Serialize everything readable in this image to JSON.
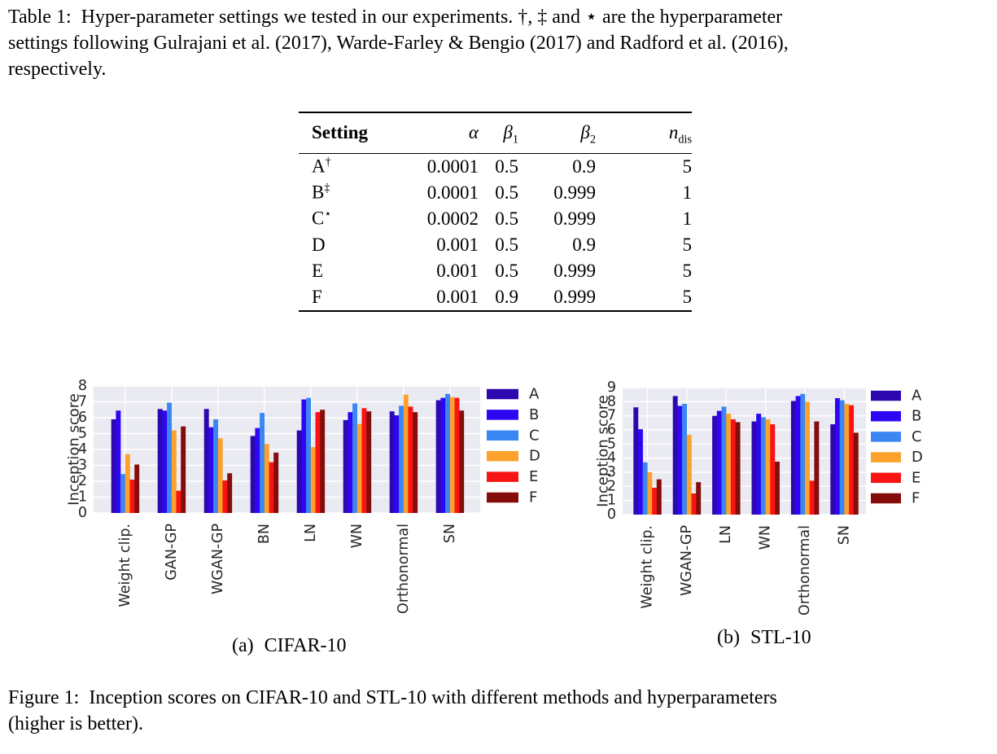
{
  "document": {
    "table_caption": {
      "lines": [
        "Table 1:  Hyper-parameter settings we tested in our experiments. †, ‡ and ⋆ are the hyperparameter",
        "settings following Gulrajani et al. (2017), Warde-Farley & Bengio (2017) and Radford et al. (2016),",
        "respectively."
      ]
    },
    "figure_caption": {
      "lines": [
        "Figure 1:  Inception scores on CIFAR-10 and STL-10 with different methods and hyperparameters",
        "(higher is better)."
      ]
    }
  },
  "table": {
    "columns": [
      {
        "text": "Setting",
        "bold": true
      },
      {
        "text": "α",
        "italic": true
      },
      {
        "text": "β",
        "sub": "1",
        "italic": true
      },
      {
        "text": "β",
        "sub": "2",
        "italic": true
      },
      {
        "text": "n",
        "sub": "dis",
        "italic": true
      }
    ],
    "rows": [
      {
        "setting": "A",
        "sup": "†",
        "values": [
          "0.0001",
          "0.5",
          "0.9",
          "5"
        ]
      },
      {
        "setting": "B",
        "sup": "‡",
        "values": [
          "0.0001",
          "0.5",
          "0.999",
          "1"
        ]
      },
      {
        "setting": "C",
        "sup": "⋆",
        "values": [
          "0.0002",
          "0.5",
          "0.999",
          "1"
        ]
      },
      {
        "setting": "D",
        "sup": "",
        "values": [
          "0.001",
          "0.5",
          "0.9",
          "5"
        ]
      },
      {
        "setting": "E",
        "sup": "",
        "values": [
          "0.001",
          "0.5",
          "0.999",
          "5"
        ]
      },
      {
        "setting": "F",
        "sup": "",
        "values": [
          "0.001",
          "0.9",
          "0.999",
          "5"
        ]
      }
    ]
  },
  "palette": {
    "A": "#2c08ae",
    "B": "#2e06f4",
    "C": "#3a86f2",
    "D": "#fba12c",
    "E": "#f81412",
    "F": "#840c0a"
  },
  "plot_style": {
    "background": "#eaeaf2",
    "grid_color": "#ffffff",
    "text_color": "#262626"
  },
  "chart_data": [
    {
      "type": "bar",
      "title": "(a) CIFAR-10",
      "caption_label": "(a)",
      "caption_text": "CIFAR-10",
      "ylabel": "Inception score",
      "ylim": [
        0,
        8
      ],
      "ytick_step": 1,
      "grid": true,
      "legend_position": "right",
      "categories": [
        "Weight clip.",
        "GAN-GP",
        "WGAN-GP",
        "BN",
        "LN",
        "WN",
        "Orthonormal",
        "SN"
      ],
      "series": [
        {
          "name": "A",
          "color": "#2c08ae",
          "values": [
            5.9,
            6.55,
            6.55,
            4.85,
            5.2,
            5.85,
            6.4,
            7.1
          ]
        },
        {
          "name": "B",
          "color": "#2e06f4",
          "values": [
            6.45,
            6.45,
            5.4,
            5.35,
            7.15,
            6.35,
            6.15,
            7.25
          ]
        },
        {
          "name": "C",
          "color": "#3a86f2",
          "values": [
            2.45,
            6.95,
            5.9,
            6.3,
            7.25,
            6.9,
            6.75,
            7.5
          ]
        },
        {
          "name": "D",
          "color": "#fba12c",
          "values": [
            3.7,
            5.2,
            4.7,
            4.35,
            4.15,
            5.6,
            7.45,
            7.3
          ]
        },
        {
          "name": "E",
          "color": "#f81412",
          "values": [
            2.1,
            1.4,
            2.05,
            3.2,
            6.35,
            6.6,
            6.7,
            7.25
          ]
        },
        {
          "name": "F",
          "color": "#840c0a",
          "values": [
            3.05,
            5.45,
            2.5,
            3.8,
            6.5,
            6.4,
            6.35,
            6.45
          ]
        }
      ]
    },
    {
      "type": "bar",
      "title": "(b) STL-10",
      "caption_label": "(b)",
      "caption_text": "STL-10",
      "ylabel": "Inception score",
      "ylim": [
        0,
        9
      ],
      "ytick_step": 1,
      "grid": true,
      "legend_position": "right",
      "categories": [
        "Weight clip.",
        "WGAN-GP",
        "LN",
        "WN",
        "Orthonormal",
        "SN"
      ],
      "series": [
        {
          "name": "A",
          "color": "#2c08ae",
          "values": [
            7.6,
            8.4,
            7.0,
            6.6,
            8.05,
            6.4
          ]
        },
        {
          "name": "B",
          "color": "#2e06f4",
          "values": [
            6.05,
            7.7,
            7.35,
            7.15,
            8.4,
            8.25
          ]
        },
        {
          "name": "C",
          "color": "#3a86f2",
          "values": [
            3.7,
            7.85,
            7.65,
            6.9,
            8.55,
            8.1
          ]
        },
        {
          "name": "D",
          "color": "#fba12c",
          "values": [
            3.0,
            5.65,
            7.15,
            6.75,
            8.0,
            7.85
          ]
        },
        {
          "name": "E",
          "color": "#f81412",
          "values": [
            1.9,
            1.5,
            6.75,
            6.4,
            2.4,
            7.75
          ]
        },
        {
          "name": "F",
          "color": "#840c0a",
          "values": [
            2.5,
            2.3,
            6.55,
            3.75,
            6.6,
            5.8
          ]
        }
      ]
    }
  ]
}
